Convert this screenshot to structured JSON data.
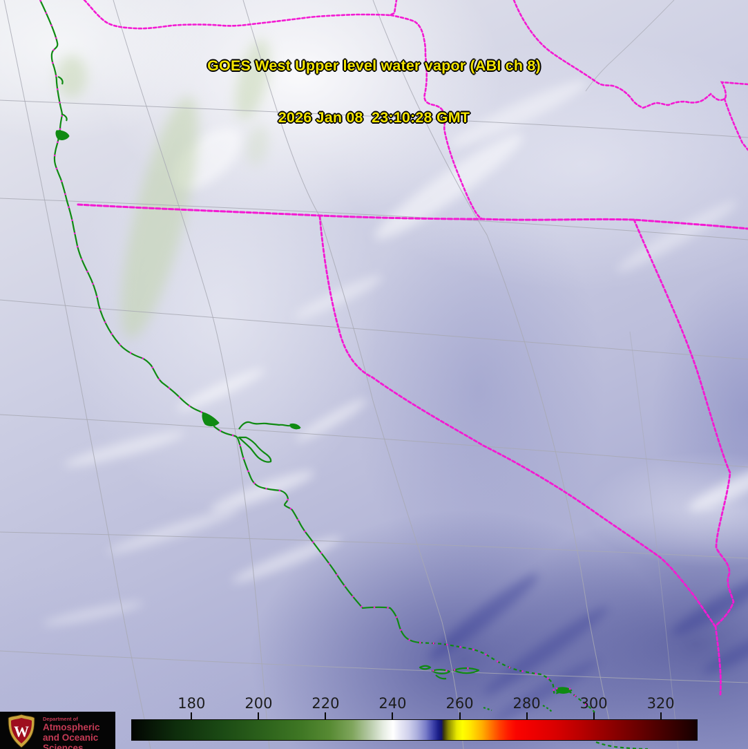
{
  "title": {
    "line1": "GOES West Upper level water vapor (ABI ch 8)",
    "line2": "2026 Jan 08  23:10:28 GMT"
  },
  "colorbar": {
    "domain": [
      162,
      331
    ],
    "ticks": [
      "180",
      "200",
      "220",
      "240",
      "260",
      "280",
      "300",
      "320"
    ],
    "gradient": [
      [
        0,
        "#020502"
      ],
      [
        8,
        "#0e2e0c"
      ],
      [
        16,
        "#1b4a14"
      ],
      [
        24,
        "#2e641c"
      ],
      [
        30,
        "#3f7724"
      ],
      [
        35,
        "#578a33"
      ],
      [
        39,
        "#7fa55c"
      ],
      [
        42,
        "#b5c9a5"
      ],
      [
        44.5,
        "#e6ede2"
      ],
      [
        46.2,
        "#ffffff"
      ],
      [
        47.5,
        "#e8e8f5"
      ],
      [
        49,
        "#cfd0ec"
      ],
      [
        50.5,
        "#abaedd"
      ],
      [
        52,
        "#7a7ec9"
      ],
      [
        53.2,
        "#4347ad"
      ],
      [
        54.2,
        "#1b1f8a"
      ],
      [
        54.8,
        "#14146a"
      ],
      [
        55.2,
        "#3d3a08"
      ],
      [
        56,
        "#8a8a00"
      ],
      [
        57.5,
        "#e8e800"
      ],
      [
        58.5,
        "#ffff00"
      ],
      [
        60,
        "#ffe400"
      ],
      [
        62,
        "#ffae00"
      ],
      [
        63.5,
        "#ff7800"
      ],
      [
        65,
        "#ff4400"
      ],
      [
        66.5,
        "#ff1c00"
      ],
      [
        68,
        "#fa0400"
      ],
      [
        71,
        "#ee0000"
      ],
      [
        75,
        "#d90000"
      ],
      [
        79,
        "#bc0000"
      ],
      [
        83,
        "#9c0000"
      ],
      [
        88,
        "#760000"
      ],
      [
        93,
        "#4e0000"
      ],
      [
        97,
        "#2e0000"
      ],
      [
        100,
        "#150000"
      ]
    ]
  },
  "logo": {
    "dept": "Department of",
    "line2": "Atmospheric",
    "line3": "and Oceanic Sciences",
    "crest_letter": "W"
  },
  "map": {
    "satellite": "GOES West",
    "channel": "ABI ch 8",
    "features": [
      "pacific-coastline",
      "san-francisco-bay",
      "point-reyes",
      "cape-mendocino",
      "channel-islands",
      "state-border-wa-or",
      "state-border-or-id",
      "state-border-42n",
      "state-border-ca-nv",
      "state-border-nv-ut",
      "state-border-id-mt",
      "state-border-id-wy",
      "latitude-longitude-graticule"
    ]
  },
  "colors": {
    "border_magenta": "#f31ad2",
    "coast_green": "#0f8a12",
    "title_yellow": "#f3e400",
    "logo_red": "#c53a55"
  }
}
